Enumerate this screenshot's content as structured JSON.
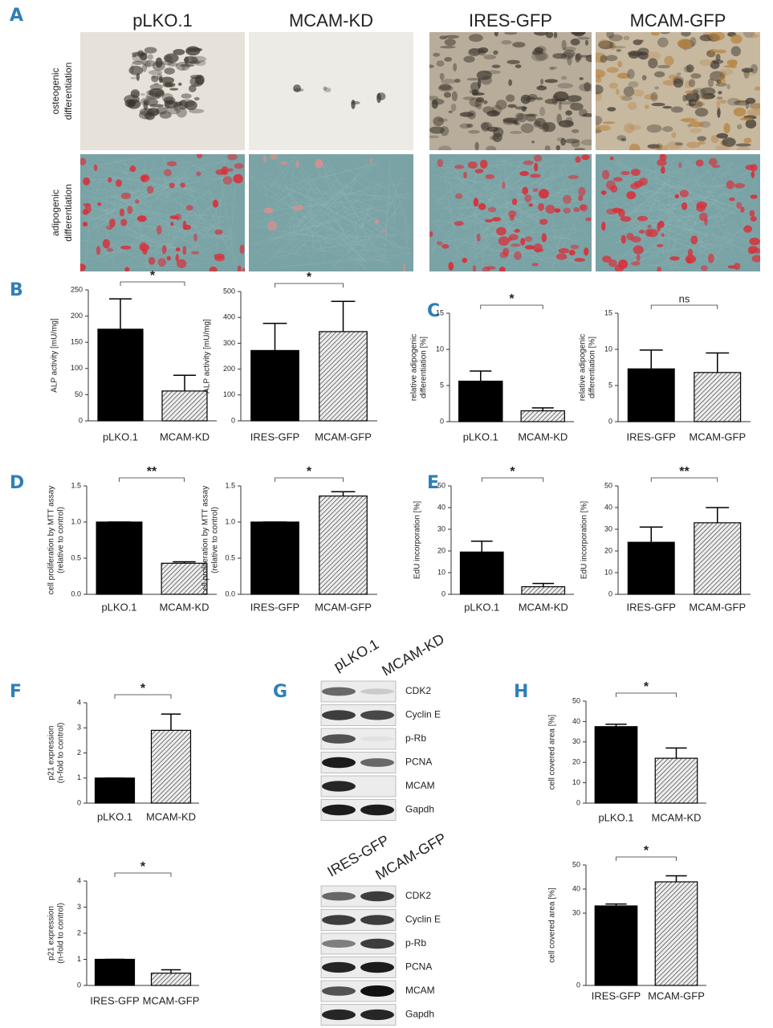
{
  "panel_letters": [
    "A",
    "B",
    "C",
    "D",
    "E",
    "F",
    "G",
    "H"
  ],
  "micrographs": {
    "columns": [
      "pLKO.1",
      "MCAM-KD",
      "IRES-GFP",
      "MCAM-GFP"
    ],
    "rows": [
      [
        "osteogenic",
        "differentiation"
      ],
      [
        "adipogenic",
        "differentiation"
      ]
    ]
  },
  "blots": [
    {
      "lanes": [
        "pLKO.1",
        "MCAM-KD"
      ],
      "proteins": [
        "CDK2",
        "Cyclin E",
        "p-Rb",
        "PCNA",
        "MCAM",
        "Gapdh"
      ]
    },
    {
      "lanes": [
        "IRES-GFP",
        "MCAM-GFP"
      ],
      "proteins": [
        "CDK2",
        "Cyclin E",
        "p-Rb",
        "PCNA",
        "MCAM",
        "Gapdh"
      ]
    }
  ],
  "chart_data": [
    {
      "type": "bar",
      "ylabel": [
        "ALP activity [mU/mg]"
      ],
      "categories": [
        "pLKO.1",
        "MCAM-KD"
      ],
      "values": [
        175,
        57
      ],
      "errors": [
        58,
        30
      ],
      "ylim": [
        0,
        250
      ],
      "yticks": [
        0,
        50,
        100,
        150,
        200,
        250
      ],
      "significance": "*",
      "colors": [
        "#000000",
        "#ffffff"
      ],
      "hatch": [
        false,
        true
      ]
    },
    {
      "type": "bar",
      "ylabel": [
        "ALP activity [mU/mg]"
      ],
      "categories": [
        "IRES-GFP",
        "MCAM-GFP"
      ],
      "values": [
        272,
        345
      ],
      "errors": [
        105,
        117
      ],
      "ylim": [
        0,
        500
      ],
      "yticks": [
        0,
        100,
        200,
        300,
        400,
        500
      ],
      "significance": "*",
      "colors": [
        "#000000",
        "#ffffff"
      ],
      "hatch": [
        false,
        true
      ]
    },
    {
      "type": "bar",
      "ylabel": [
        "relative adipogenic",
        "differentiation [%]"
      ],
      "categories": [
        "pLKO.1",
        "MCAM-KD"
      ],
      "values": [
        5.6,
        1.5
      ],
      "errors": [
        1.4,
        0.4
      ],
      "ylim": [
        0,
        15
      ],
      "yticks": [
        0,
        5,
        10,
        15
      ],
      "significance": "*",
      "colors": [
        "#000000",
        "#ffffff"
      ],
      "hatch": [
        false,
        true
      ]
    },
    {
      "type": "bar",
      "ylabel": [
        "relative adipogenic",
        "differentiation [%]"
      ],
      "categories": [
        "IRES-GFP",
        "MCAM-GFP"
      ],
      "values": [
        7.3,
        6.8
      ],
      "errors": [
        2.6,
        2.7
      ],
      "ylim": [
        0,
        15
      ],
      "yticks": [
        0,
        5,
        10,
        15
      ],
      "significance": "ns",
      "colors": [
        "#000000",
        "#ffffff"
      ],
      "hatch": [
        false,
        true
      ]
    },
    {
      "type": "bar",
      "ylabel": [
        "cell proliferation by MTT assay",
        "(relative to control)"
      ],
      "categories": [
        "pLKO.1",
        "MCAM-KD"
      ],
      "values": [
        1.0,
        0.43
      ],
      "errors": [
        0,
        0.02
      ],
      "ylim": [
        0,
        1.5
      ],
      "yticks": [
        {
          "value": 0,
          "label": "0.0"
        },
        0.5,
        {
          "value": 1,
          "label": "1.0"
        },
        1.5
      ],
      "significance": "**",
      "colors": [
        "#000000",
        "#ffffff"
      ],
      "hatch": [
        false,
        true
      ]
    },
    {
      "type": "bar",
      "ylabel": [
        "cell proliferation by MTT assay",
        "(relative to control)"
      ],
      "categories": [
        "IRES-GFP",
        "MCAM-GFP"
      ],
      "values": [
        1.0,
        1.36
      ],
      "errors": [
        0,
        0.06
      ],
      "ylim": [
        0,
        1.5
      ],
      "yticks": [
        {
          "value": 0,
          "label": "0.0"
        },
        0.5,
        {
          "value": 1,
          "label": "1.0"
        },
        1.5
      ],
      "significance": "*",
      "colors": [
        "#000000",
        "#ffffff"
      ],
      "hatch": [
        false,
        true
      ]
    },
    {
      "type": "bar",
      "ylabel": [
        "EdU incorporation [%]"
      ],
      "categories": [
        "pLKO.1",
        "MCAM-KD"
      ],
      "values": [
        19.5,
        3.5
      ],
      "errors": [
        5,
        1.5
      ],
      "ylim": [
        0,
        50
      ],
      "yticks": [
        0,
        10,
        20,
        30,
        40,
        50
      ],
      "significance": "*",
      "colors": [
        "#000000",
        "#ffffff"
      ],
      "hatch": [
        false,
        true
      ]
    },
    {
      "type": "bar",
      "ylabel": [
        "EdU incorporation [%]"
      ],
      "categories": [
        "IRES-GFP",
        "MCAM-GFP"
      ],
      "values": [
        24,
        33
      ],
      "errors": [
        7,
        7
      ],
      "ylim": [
        0,
        50
      ],
      "yticks": [
        0,
        10,
        20,
        30,
        40,
        50
      ],
      "significance": "**",
      "colors": [
        "#000000",
        "#ffffff"
      ],
      "hatch": [
        false,
        true
      ]
    },
    {
      "type": "bar",
      "ylabel": [
        "p21 expression",
        "(n-fold to control)"
      ],
      "categories": [
        "pLKO.1",
        "MCAM-KD"
      ],
      "values": [
        1.0,
        2.9
      ],
      "errors": [
        0,
        0.65
      ],
      "ylim": [
        0,
        4
      ],
      "yticks": [
        0,
        1,
        2,
        3,
        4
      ],
      "significance": "*",
      "colors": [
        "#000000",
        "#ffffff"
      ],
      "hatch": [
        false,
        true
      ]
    },
    {
      "type": "bar",
      "ylabel": [
        "p21 expression",
        "(n-fold to control)"
      ],
      "categories": [
        "IRES-GFP",
        "MCAM-GFP"
      ],
      "values": [
        1.0,
        0.47
      ],
      "errors": [
        0,
        0.13
      ],
      "ylim": [
        0,
        4
      ],
      "yticks": [
        0,
        1,
        2,
        3,
        4
      ],
      "significance": "*",
      "colors": [
        "#000000",
        "#ffffff"
      ],
      "hatch": [
        false,
        true
      ]
    },
    {
      "type": "bar",
      "ylabel": [
        "cell covered area [%]"
      ],
      "categories": [
        "pLKO.1",
        "MCAM-KD"
      ],
      "values": [
        37.5,
        22
      ],
      "errors": [
        1.2,
        5
      ],
      "ylim": [
        0,
        50
      ],
      "yticks": [
        0,
        10,
        20,
        30,
        40,
        50
      ],
      "significance": "*",
      "colors": [
        "#000000",
        "#ffffff"
      ],
      "hatch": [
        false,
        true
      ]
    },
    {
      "type": "bar",
      "ylabel": [
        "cell covered area [%]"
      ],
      "categories": [
        "IRES-GFP",
        "MCAM-GFP"
      ],
      "values": [
        33,
        43
      ],
      "errors": [
        0.8,
        2.5
      ],
      "ylim": [
        0,
        50
      ],
      "yticks": [
        0,
        30,
        40,
        50
      ],
      "significance": "*",
      "colors": [
        "#000000",
        "#ffffff"
      ],
      "hatch": [
        false,
        true
      ]
    }
  ]
}
